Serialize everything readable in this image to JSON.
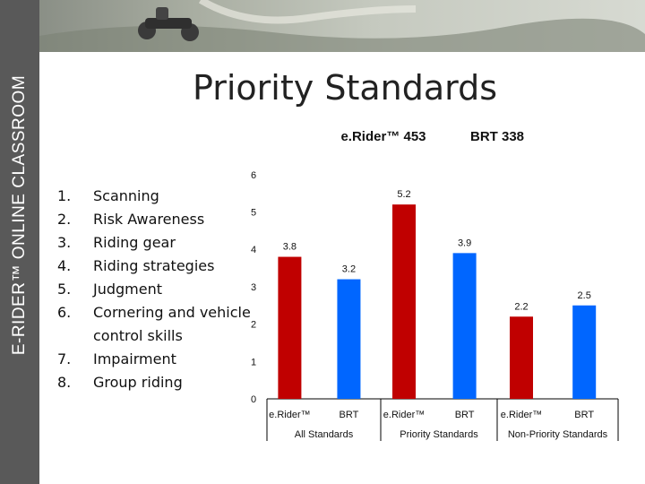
{
  "sidebar": {
    "label": "E-RIDER™ ONLINE CLASSROOM"
  },
  "slide": {
    "title": "Priority Standards"
  },
  "priorities": [
    {
      "num": "1.",
      "text": "Scanning"
    },
    {
      "num": "2.",
      "text": "Risk Awareness"
    },
    {
      "num": "3.",
      "text": "Riding gear"
    },
    {
      "num": "4.",
      "text": "Riding strategies"
    },
    {
      "num": "5.",
      "text": "Judgment"
    },
    {
      "num": "6.",
      "text": "Cornering and vehicle control skills"
    },
    {
      "num": "7.",
      "text": "Impairment"
    },
    {
      "num": "8.",
      "text": "Group riding"
    }
  ],
  "colors": {
    "erider": "#c00000",
    "brt": "#0066ff",
    "sidebar": "#595959"
  },
  "chart_data": {
    "type": "bar",
    "legend_labels": [
      "e.Rider™ 453",
      "BRT 338"
    ],
    "groups": [
      {
        "label": "All Standards",
        "bars": [
          {
            "label": "e.Rider™",
            "value": 3.8
          },
          {
            "label": "BRT",
            "value": 3.2
          }
        ]
      },
      {
        "label": "Priority Standards",
        "bars": [
          {
            "label": "e.Rider™",
            "value": 5.2
          },
          {
            "label": "BRT",
            "value": 3.9
          }
        ]
      },
      {
        "label": "Non-Priority Standards",
        "bars": [
          {
            "label": "e.Rider™",
            "value": 2.2
          },
          {
            "label": "BRT",
            "value": 2.5
          }
        ]
      }
    ],
    "ylim": [
      0,
      6
    ],
    "yticks": [
      "0",
      "1",
      "2",
      "3",
      "4",
      "5",
      "6"
    ],
    "grid": false
  }
}
